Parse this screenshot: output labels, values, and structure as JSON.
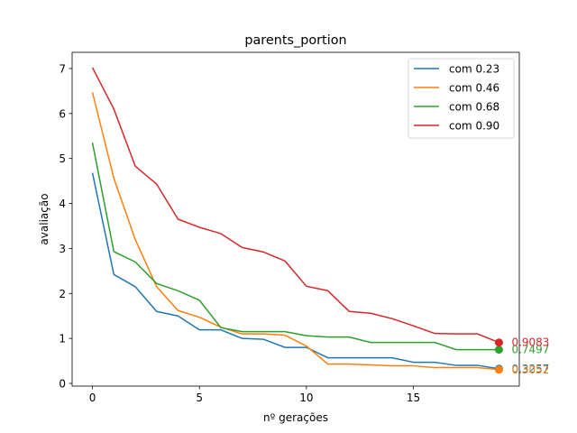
{
  "chart_data": {
    "type": "line",
    "title": "parents_portion",
    "xlabel": "nº gerações",
    "ylabel": "avaliação",
    "xlim": [
      -0.95,
      19.95
    ],
    "ylim": [
      -0.06,
      7.36
    ],
    "xticks": [
      0,
      5,
      10,
      15
    ],
    "yticks": [
      0,
      1,
      2,
      3,
      4,
      5,
      6,
      7
    ],
    "grid": false,
    "legend_position": "upper right",
    "x": [
      0,
      1,
      2,
      3,
      4,
      5,
      6,
      7,
      8,
      9,
      10,
      11,
      12,
      13,
      14,
      15,
      16,
      17,
      18,
      19
    ],
    "series": [
      {
        "name": "com 0.23",
        "color": "#1f77b4",
        "values": [
          4.68,
          2.42,
          2.15,
          1.6,
          1.5,
          1.19,
          1.19,
          1.0,
          0.98,
          0.8,
          0.8,
          0.57,
          0.57,
          0.57,
          0.57,
          0.47,
          0.47,
          0.4,
          0.4,
          0.3257
        ],
        "end_label": "0.3257"
      },
      {
        "name": "com 0.46",
        "color": "#ff7f0e",
        "values": [
          6.47,
          4.56,
          3.2,
          2.15,
          1.62,
          1.47,
          1.25,
          1.1,
          1.1,
          1.07,
          0.83,
          0.43,
          0.43,
          0.41,
          0.39,
          0.39,
          0.35,
          0.35,
          0.35,
          0.3052
        ],
        "end_label": "0.3052"
      },
      {
        "name": "com 0.68",
        "color": "#2ca02c",
        "values": [
          5.35,
          2.93,
          2.7,
          2.22,
          2.06,
          1.85,
          1.24,
          1.15,
          1.15,
          1.15,
          1.06,
          1.03,
          1.03,
          0.91,
          0.91,
          0.91,
          0.91,
          0.75,
          0.75,
          0.7497
        ],
        "end_label": "0.7497"
      },
      {
        "name": "com 0.90",
        "color": "#d62728",
        "values": [
          7.02,
          6.1,
          4.83,
          4.43,
          3.65,
          3.47,
          3.33,
          3.02,
          2.92,
          2.72,
          2.16,
          2.06,
          1.6,
          1.56,
          1.44,
          1.28,
          1.11,
          1.1,
          1.1,
          0.9083
        ],
        "end_label": "0.9083"
      }
    ]
  }
}
